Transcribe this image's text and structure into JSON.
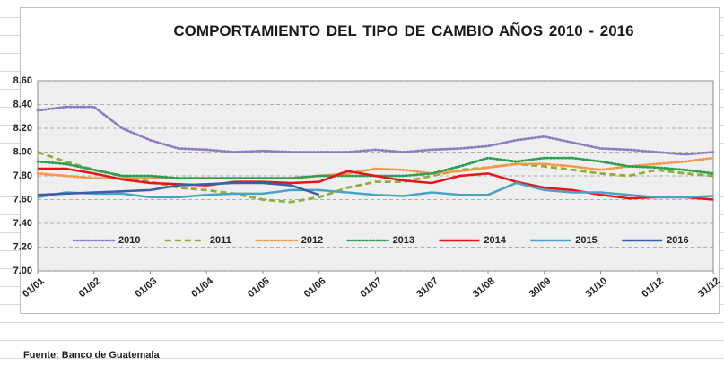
{
  "chart_data": {
    "type": "line",
    "title": "COMPORTAMIENTO DEL TIPO DE CAMBIO AÑOS 2010 - 2016",
    "source": "Fuente: Banco de Guatemala",
    "categories": [
      "01/01",
      null,
      "01/02",
      null,
      "01/03",
      null,
      "01/04",
      null,
      "01/05",
      null,
      "01/06",
      null,
      "01/07",
      null,
      "31/07",
      null,
      "31/08",
      null,
      "30/09",
      null,
      "31/10",
      null,
      "01/12",
      null,
      "31/12"
    ],
    "ylim": [
      7.0,
      8.6
    ],
    "yticks": [
      {
        "value": 7.0,
        "label": "7.00"
      },
      {
        "value": 7.2,
        "label": "7.20"
      },
      {
        "value": 7.4,
        "label": "7.40"
      },
      {
        "value": 7.6,
        "label": "7.60"
      },
      {
        "value": 7.8,
        "label": "7.80"
      },
      {
        "value": 8.0,
        "label": "8.00"
      },
      {
        "value": 8.2,
        "label": "8.20"
      },
      {
        "value": 8.4,
        "label": "8.40"
      },
      {
        "value": 8.6,
        "label": "8.60"
      }
    ],
    "grid": true,
    "legend": "inside-bottom",
    "series": [
      {
        "name": "2010",
        "color": "#8e7cc3",
        "dash": "dotted",
        "values": [
          8.35,
          8.38,
          8.38,
          8.2,
          8.1,
          8.03,
          8.02,
          8.0,
          8.01,
          8.0,
          8.0,
          8.0,
          8.02,
          8.0,
          8.02,
          8.03,
          8.05,
          8.1,
          8.13,
          8.08,
          8.03,
          8.02,
          8.0,
          7.98,
          8.0
        ]
      },
      {
        "name": "2011",
        "color": "#8fae3b",
        "dash": "dashed",
        "values": [
          8.0,
          7.92,
          7.85,
          7.8,
          7.75,
          7.7,
          7.68,
          7.65,
          7.6,
          7.58,
          7.62,
          7.7,
          7.75,
          7.75,
          7.8,
          7.85,
          7.87,
          7.9,
          7.88,
          7.85,
          7.82,
          7.8,
          7.85,
          7.82,
          7.8
        ]
      },
      {
        "name": "2012",
        "color": "#f39a4a",
        "dash": "dotted",
        "values": [
          7.82,
          7.8,
          7.78,
          7.78,
          7.78,
          7.78,
          7.78,
          7.78,
          7.78,
          7.78,
          7.8,
          7.82,
          7.86,
          7.85,
          7.82,
          7.84,
          7.87,
          7.9,
          7.9,
          7.88,
          7.85,
          7.88,
          7.9,
          7.92,
          7.95
        ]
      },
      {
        "name": "2013",
        "color": "#2e9e4f",
        "dash": "dotted",
        "values": [
          7.92,
          7.9,
          7.85,
          7.8,
          7.8,
          7.78,
          7.78,
          7.78,
          7.78,
          7.78,
          7.8,
          7.8,
          7.8,
          7.8,
          7.82,
          7.88,
          7.95,
          7.92,
          7.95,
          7.95,
          7.92,
          7.88,
          7.87,
          7.85,
          7.82
        ]
      },
      {
        "name": "2014",
        "color": "#e8141b",
        "dash": "solid",
        "values": [
          7.86,
          7.86,
          7.82,
          7.77,
          7.74,
          7.73,
          7.72,
          7.75,
          7.75,
          7.74,
          7.75,
          7.84,
          7.8,
          7.76,
          7.74,
          7.8,
          7.82,
          7.75,
          7.7,
          7.68,
          7.64,
          7.61,
          7.62,
          7.62,
          7.6
        ]
      },
      {
        "name": "2015",
        "color": "#4aa3c4",
        "dash": "solid",
        "values": [
          7.62,
          7.66,
          7.65,
          7.65,
          7.62,
          7.62,
          7.64,
          7.65,
          7.65,
          7.68,
          7.68,
          7.66,
          7.64,
          7.63,
          7.66,
          7.64,
          7.64,
          7.74,
          7.68,
          7.66,
          7.66,
          7.64,
          7.62,
          7.62,
          7.63
        ]
      },
      {
        "name": "2016",
        "color": "#3b5ea8",
        "dash": "solid",
        "values": [
          7.64,
          7.65,
          7.66,
          7.67,
          7.68,
          7.72,
          7.73,
          7.74,
          7.74,
          7.72,
          7.64,
          null,
          null,
          null,
          null,
          null,
          null,
          null,
          null,
          null,
          null,
          null,
          null,
          null,
          null
        ]
      }
    ]
  }
}
